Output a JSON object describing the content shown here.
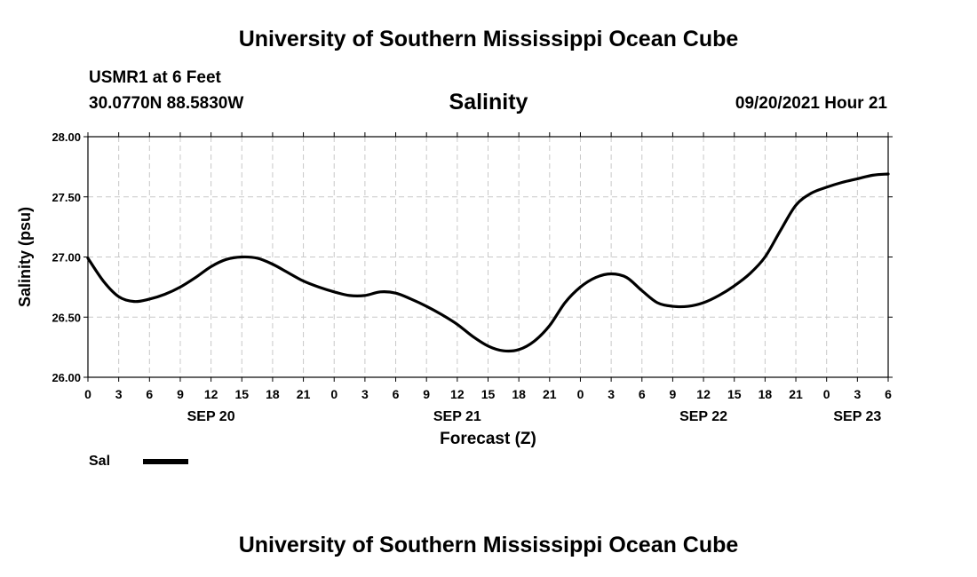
{
  "header": {
    "title": "University of Southern Mississippi Ocean Cube",
    "station": "USMR1 at 6 Feet",
    "coordinates": "30.0770N  88.5830W",
    "datetime": "09/20/2021 Hour 21"
  },
  "footer": {
    "title": "University of Southern Mississippi Ocean Cube"
  },
  "legend": {
    "label": "Sal",
    "color": "#000000"
  },
  "chart_data": {
    "type": "line",
    "title": "Salinity",
    "xlabel": "Forecast (Z)",
    "ylabel": "Salinity (psu)",
    "ylim": [
      26.0,
      28.0
    ],
    "yticks": [
      "26.00",
      "26.50",
      "27.00",
      "27.50",
      "28.00"
    ],
    "xlim_hours": [
      0,
      78
    ],
    "xtick_labels": [
      "0",
      "3",
      "6",
      "9",
      "12",
      "15",
      "18",
      "21",
      "0",
      "3",
      "6",
      "9",
      "12",
      "15",
      "18",
      "21",
      "0",
      "3",
      "6",
      "9",
      "12",
      "15",
      "18",
      "21",
      "0",
      "3",
      "6"
    ],
    "date_labels": [
      {
        "label": "SEP 20",
        "hour": 12
      },
      {
        "label": "SEP 21",
        "hour": 36
      },
      {
        "label": "SEP 22",
        "hour": 60
      },
      {
        "label": "SEP 23",
        "hour": 75
      }
    ],
    "grid": true,
    "series": [
      {
        "name": "Sal",
        "x_hours": [
          0,
          1.5,
          3,
          4.5,
          6,
          7.5,
          9,
          10.5,
          12,
          13.5,
          15,
          16.5,
          18,
          19.5,
          21,
          22.5,
          24,
          25.5,
          27,
          28.5,
          30,
          31.5,
          33,
          34.5,
          36,
          37.5,
          39,
          40.5,
          42,
          43.5,
          45,
          46.5,
          48,
          49.5,
          51,
          52.5,
          54,
          55.5,
          57,
          58.5,
          60,
          61.5,
          63,
          64.5,
          66,
          67.5,
          69,
          70.5,
          72,
          73.5,
          75,
          76.5,
          78
        ],
        "values": [
          26.99,
          26.8,
          26.67,
          26.63,
          26.65,
          26.69,
          26.75,
          26.83,
          26.92,
          26.98,
          27.0,
          26.99,
          26.94,
          26.87,
          26.8,
          26.75,
          26.71,
          26.68,
          26.68,
          26.71,
          26.7,
          26.65,
          26.59,
          26.52,
          26.44,
          26.34,
          26.26,
          26.22,
          26.23,
          26.3,
          26.43,
          26.62,
          26.75,
          26.83,
          26.86,
          26.83,
          26.72,
          26.62,
          26.59,
          26.59,
          26.62,
          26.68,
          26.76,
          26.86,
          27.0,
          27.22,
          27.43,
          27.53,
          27.58,
          27.62,
          27.65,
          27.68,
          27.69
        ]
      }
    ]
  }
}
